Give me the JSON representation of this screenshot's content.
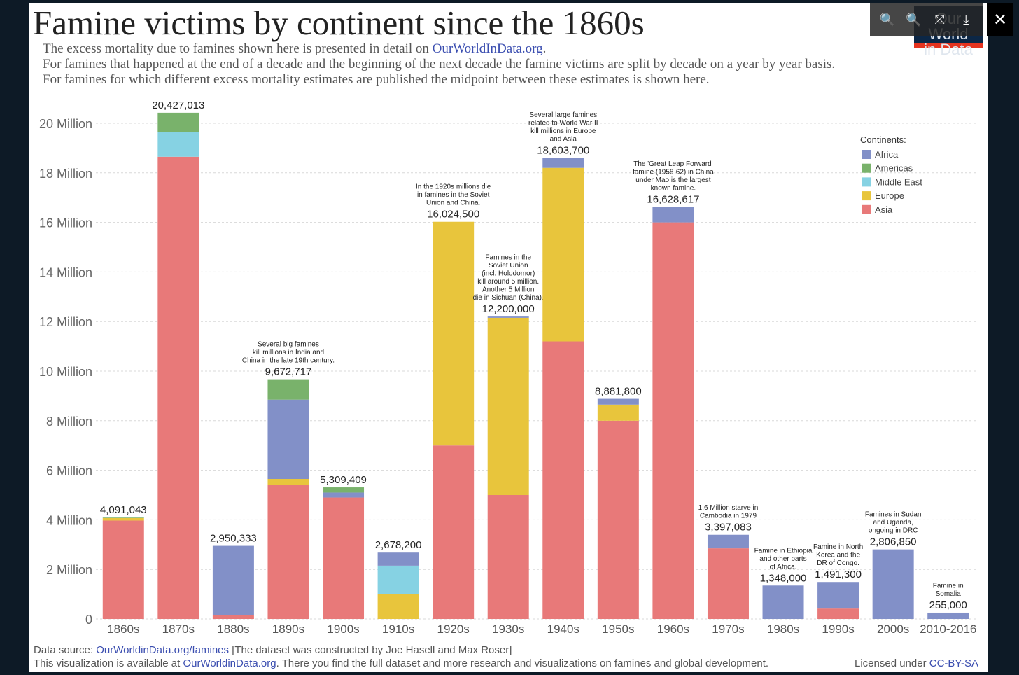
{
  "header": {
    "title": "Famine victims by continent since the 1860s",
    "subtitle_1_pre": "The excess mortality due to famines shown here is presented in detail on ",
    "subtitle_1_link": "OurWorldInData.org",
    "subtitle_1_post": ".",
    "subtitle_2": "For famines that happened at the end of a decade and the beginning of the next decade the famine victims are split by decade on a year by year basis.",
    "subtitle_3": "For famines for which different excess mortality estimates are published the midpoint between these estimates is shown here.",
    "logo_line1": "Our World",
    "logo_line2": "in Data"
  },
  "toolbar": {
    "zoom_in": "🔍",
    "zoom_out": "🔍",
    "fit": "⤧",
    "download": "⤓",
    "close": "✕"
  },
  "colors": {
    "Africa": "#8290c8",
    "Americas": "#79b26b",
    "Middle East": "#86d2e3",
    "Europe": "#e8c53c",
    "Asia": "#e87979"
  },
  "chart_data": {
    "type": "bar",
    "stacked": true,
    "ylim": [
      0,
      21000000
    ],
    "yticks": [
      0,
      2000000,
      4000000,
      6000000,
      8000000,
      10000000,
      12000000,
      14000000,
      16000000,
      18000000,
      20000000
    ],
    "ytick_labels": [
      "0",
      "2 Million",
      "4 Million",
      "6 Million",
      "8 Million",
      "10 Million",
      "12 Million",
      "14 Million",
      "16 Million",
      "18 Million",
      "20 Million"
    ],
    "grid": true,
    "legend_title": "Continents:",
    "legend_position": "top-right",
    "legend": [
      "Africa",
      "Americas",
      "Middle East",
      "Europe",
      "Asia"
    ],
    "categories": [
      "1860s",
      "1870s",
      "1880s",
      "1890s",
      "1900s",
      "1910s",
      "1920s",
      "1930s",
      "1940s",
      "1950s",
      "1960s",
      "1970s",
      "1980s",
      "1990s",
      "2000s",
      "2010-2016"
    ],
    "totals": [
      "4,091,043",
      "20,427,013",
      "2,950,333",
      "9,672,717",
      "5,309,409",
      "2,678,200",
      "16,024,500",
      "12,200,000",
      "18,603,700",
      "8,881,800",
      "16,628,617",
      "3,397,083",
      "1,348,000",
      "1,491,300",
      "2,806,850",
      "255,000"
    ],
    "stack_order": [
      "Asia",
      "Europe",
      "Middle East",
      "Africa",
      "Americas"
    ],
    "series": [
      {
        "name": "Asia",
        "values": [
          3970000,
          18650000,
          150000,
          5400000,
          4900000,
          0,
          7000000,
          5000000,
          11200000,
          8000000,
          16000000,
          2850000,
          0,
          420000,
          0,
          0
        ]
      },
      {
        "name": "Europe",
        "values": [
          100000,
          0,
          0,
          250000,
          0,
          1000000,
          9024500,
          7150000,
          7000000,
          650000,
          0,
          0,
          0,
          0,
          0,
          0
        ]
      },
      {
        "name": "Middle East",
        "values": [
          0,
          1000000,
          0,
          0,
          0,
          1150000,
          0,
          0,
          0,
          0,
          0,
          0,
          0,
          0,
          0,
          0
        ]
      },
      {
        "name": "Africa",
        "values": [
          0,
          0,
          2800333,
          3200000,
          200000,
          528200,
          0,
          50000,
          403700,
          231800,
          628617,
          547083,
          1348000,
          1071300,
          2806850,
          255000
        ]
      },
      {
        "name": "Americas",
        "values": [
          21043,
          777013,
          0,
          822717,
          209409,
          0,
          0,
          0,
          0,
          0,
          0,
          0,
          0,
          0,
          0,
          0
        ]
      }
    ],
    "annotations": [
      {
        "category": "1890s",
        "text": [
          "Several big famines",
          "kill millions in India and",
          "China in the late 19th century."
        ]
      },
      {
        "category": "1920s",
        "text": [
          "In the 1920s millions die",
          "in famines in the Soviet",
          "Union and China."
        ]
      },
      {
        "category": "1930s",
        "text": [
          "Famines in the",
          "Soviet Union",
          "(incl. Holodomor)",
          "kill around 5 million.",
          "Another 5 Million",
          "die in Sichuan (China)."
        ]
      },
      {
        "category": "1940s",
        "text": [
          "Several large famines",
          "related to World War II",
          "kill millions in Europe",
          "and Asia"
        ]
      },
      {
        "category": "1960s",
        "text": [
          "The 'Great Leap Forward'",
          "famine (1958-62) in China",
          "under Mao is the largest",
          "known famine."
        ]
      },
      {
        "category": "1970s",
        "text": [
          "1.6 Million starve in",
          "Cambodia in 1979"
        ]
      },
      {
        "category": "1980s",
        "text": [
          "Famine in Ethiopia",
          "and other parts",
          "of Africa."
        ]
      },
      {
        "category": "1990s",
        "text": [
          "Famine in North",
          "Korea and the",
          "DR of Congo."
        ]
      },
      {
        "category": "2000s",
        "text": [
          "Famines in Sudan",
          "and Uganda,",
          "ongoing in DRC"
        ]
      },
      {
        "category": "2010-2016",
        "text": [
          "Famine in",
          "Somalia"
        ]
      }
    ]
  },
  "footer": {
    "source_prefix": "Data source: ",
    "source_link": "OurWorldinData.org/famines",
    "source_suffix": " [The dataset was constructed by Joe Hasell and Max Roser]",
    "avail_prefix": "This visualization is available at ",
    "avail_link": "OurWorldinData.org",
    "avail_suffix": ". There you find the full dataset and more research and visualizations on famines and global development.",
    "license_prefix": "Licensed under ",
    "license_link": "CC-BY-SA"
  }
}
